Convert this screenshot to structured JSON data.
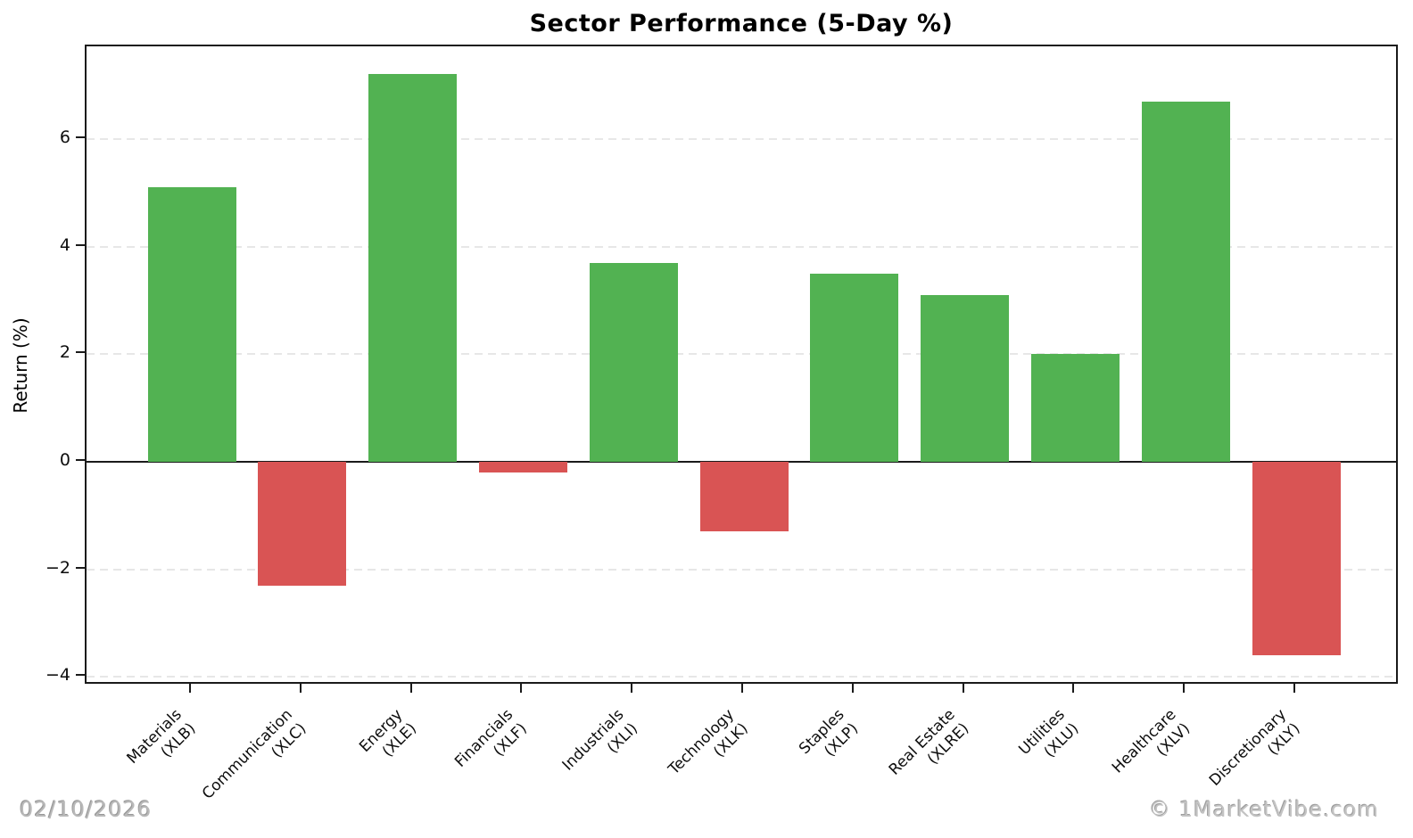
{
  "chart_data": {
    "type": "bar",
    "title": "Sector Performance (5-Day %)",
    "ylabel": "Return (%)",
    "xlabel": "",
    "categories": [
      [
        "Materials",
        "(XLB)"
      ],
      [
        "Communication",
        "(XLC)"
      ],
      [
        "Energy",
        "(XLE)"
      ],
      [
        "Financials",
        "(XLF)"
      ],
      [
        "Industrials",
        "(XLI)"
      ],
      [
        "Technology",
        "(XLK)"
      ],
      [
        "Staples",
        "(XLP)"
      ],
      [
        "Real Estate",
        "(XLRE)"
      ],
      [
        "Utilities",
        "(XLU)"
      ],
      [
        "Healthcare",
        "(XLV)"
      ],
      [
        "Discretionary",
        "(XLY)"
      ]
    ],
    "values": [
      5.1,
      -2.3,
      7.2,
      -0.2,
      3.7,
      -1.3,
      3.5,
      3.1,
      2.0,
      6.7,
      -3.6
    ],
    "yticks": [
      6,
      4,
      2,
      0,
      -2,
      -4
    ],
    "ylim": [
      -4.2,
      7.7
    ],
    "grid": "horizontal-dashed",
    "legend": "none",
    "positive_color": "#52b252",
    "negative_color": "#d95454"
  },
  "footer": {
    "date": "02/10/2026",
    "watermark": "© 1MarketVibe.com"
  }
}
